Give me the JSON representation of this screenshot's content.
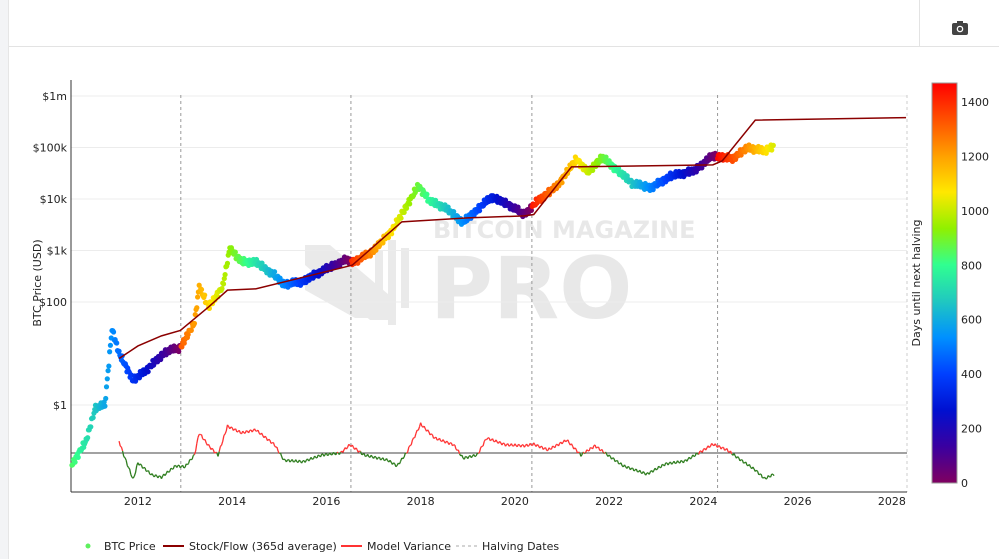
{
  "toolbar": {
    "camera_icon": "camera-icon"
  },
  "watermark": {
    "line1": "BITCOIN MAGAZINE",
    "line2": "PRO"
  },
  "chart_data": {
    "type": "scatter",
    "title": "",
    "ylabel": "BTC Price (USD)",
    "xlabel": "",
    "yscale": "log",
    "ylim": [
      0.02,
      2000000
    ],
    "xlim": [
      2010.58,
      2028.32
    ],
    "y_ticks": [
      {
        "value": 1000000,
        "label": "$1m"
      },
      {
        "value": 100000,
        "label": "$100k"
      },
      {
        "value": 10000,
        "label": "$10k"
      },
      {
        "value": 1000,
        "label": "$1k"
      },
      {
        "value": 100,
        "label": "$100"
      },
      {
        "value": 1,
        "label": "$1"
      }
    ],
    "x_ticks": [
      "2012",
      "2014",
      "2016",
      "2018",
      "2020",
      "2022",
      "2024",
      "2026",
      "2028"
    ],
    "halving_dates": [
      2012.91,
      2016.52,
      2020.36,
      2024.3
    ],
    "next_halving_estimate": 2028.3,
    "colorbar": {
      "title": "Days until next halving",
      "range": [
        0,
        1470
      ],
      "ticks": [
        "0",
        "200",
        "400",
        "600",
        "800",
        "1000",
        "1200",
        "1400"
      ],
      "colors": [
        "#800060",
        "#3a00a0",
        "#0010d0",
        "#0040ff",
        "#0090ff",
        "#20c8c0",
        "#30ff90",
        "#90f000",
        "#ffe800",
        "#ffa000",
        "#ff5000",
        "#ff0000"
      ]
    },
    "legend": {
      "placement": "bottom-left",
      "items": [
        {
          "label": "BTC Price",
          "kind": "dot",
          "color": "#5ef05e"
        },
        {
          "label": "Stock/Flow (365d average)",
          "kind": "line",
          "color": "#8b0000"
        },
        {
          "label": "Model Variance",
          "kind": "line",
          "color": "#ff3333"
        },
        {
          "label": "Halving Dates",
          "kind": "dash",
          "color": "#aaaaaa"
        }
      ]
    },
    "series": [
      {
        "name": "BTC Price",
        "x": [
          2010.6,
          2010.9,
          2011.1,
          2011.3,
          2011.45,
          2011.6,
          2011.9,
          2012.2,
          2012.6,
          2012.9,
          2013.2,
          2013.3,
          2013.5,
          2013.8,
          2013.95,
          2014.2,
          2014.5,
          2014.9,
          2015.1,
          2015.5,
          2015.9,
          2016.4,
          2016.6,
          2017.0,
          2017.4,
          2017.95,
          2018.2,
          2018.5,
          2018.9,
          2019.5,
          2019.9,
          2020.2,
          2020.5,
          2020.9,
          2021.3,
          2021.55,
          2021.85,
          2022.5,
          2022.9,
          2023.3,
          2023.8,
          2024.2,
          2024.6,
          2024.95,
          2025.3,
          2025.5
        ],
        "y": [
          0.07,
          0.2,
          0.9,
          1,
          30,
          10,
          3,
          5,
          11,
          13,
          40,
          200,
          80,
          200,
          1100,
          600,
          600,
          330,
          220,
          250,
          400,
          650,
          600,
          1000,
          2500,
          18000,
          9000,
          7000,
          3500,
          11000,
          7500,
          5000,
          9500,
          18000,
          60000,
          33000,
          65000,
          20000,
          16500,
          28000,
          35000,
          70000,
          60000,
          100000,
          85000,
          110000
        ]
      },
      {
        "name": "Stock/Flow (365d average)",
        "x": [
          2011.6,
          2012.0,
          2012.5,
          2012.9,
          2013.5,
          2013.9,
          2014.5,
          2016.4,
          2016.55,
          2017.6,
          2019.0,
          2020.2,
          2020.4,
          2021.2,
          2024.2,
          2024.4,
          2025.1,
          2028.3
        ],
        "y": [
          8,
          14,
          22,
          28,
          80,
          170,
          180,
          480,
          520,
          3600,
          4300,
          4700,
          5000,
          42000,
          46000,
          55000,
          340000,
          380000
        ]
      },
      {
        "name": "Model Variance",
        "baseline": 0,
        "x": [
          2011.6,
          2011.7,
          2011.9,
          2012.0,
          2012.3,
          2012.5,
          2012.8,
          2013.0,
          2013.2,
          2013.3,
          2013.5,
          2013.7,
          2013.9,
          2014.2,
          2014.5,
          2014.9,
          2015.1,
          2015.5,
          2015.9,
          2016.3,
          2016.5,
          2016.8,
          2017.3,
          2017.5,
          2017.7,
          2018.0,
          2018.3,
          2018.7,
          2018.9,
          2019.2,
          2019.4,
          2019.8,
          2020.2,
          2020.4,
          2020.7,
          2021.1,
          2021.4,
          2021.7,
          2022.0,
          2022.3,
          2022.8,
          2023.2,
          2023.6,
          2023.9,
          2024.2,
          2024.5,
          2024.8,
          2025.1,
          2025.3,
          2025.5
        ],
        "y": [
          0.23,
          -0.04,
          -0.52,
          -0.19,
          -0.43,
          -0.47,
          -0.25,
          -0.27,
          -0.04,
          0.39,
          0.14,
          -0.04,
          0.52,
          0.39,
          0.45,
          0.16,
          -0.14,
          -0.17,
          -0.04,
          0.0,
          0.16,
          -0.04,
          -0.14,
          -0.25,
          0.0,
          0.56,
          0.29,
          0.16,
          -0.1,
          -0.04,
          0.29,
          0.16,
          0.14,
          0.17,
          0.06,
          0.25,
          -0.04,
          0.14,
          -0.06,
          -0.25,
          -0.41,
          -0.21,
          -0.16,
          0.0,
          0.17,
          0.06,
          -0.14,
          -0.33,
          -0.5,
          -0.41
        ],
        "color_above": "#ff3333",
        "color_below": "#2e7d1e"
      }
    ]
  }
}
